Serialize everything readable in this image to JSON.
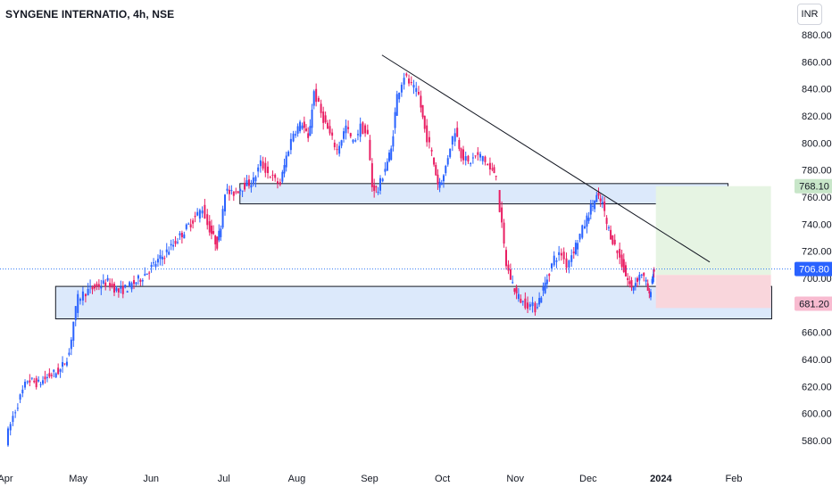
{
  "header": {
    "title": "SYNGENE INTERNATIO, 4h, NSE",
    "currency": "INR"
  },
  "colors": {
    "up": "#2962ff",
    "down": "#e91e63",
    "zone_fill": "#dce9fb",
    "zone_stroke": "#131722",
    "trendline": "#131722",
    "target_fill": "#e6f4e3",
    "stop_fill": "#f9d6dc",
    "price_line": "#3179f5"
  },
  "chart_data": {
    "type": "candlestick",
    "symbol": "SYNGENE INTERNATIO",
    "interval": "4h",
    "exchange": "NSE",
    "currency": "INR",
    "ylim": [
      570,
      890
    ],
    "y_ticks": [
      580,
      600,
      620,
      640,
      660,
      680,
      700,
      720,
      740,
      760,
      780,
      800,
      820,
      840,
      860,
      880
    ],
    "x_ticks": [
      {
        "label": "Apr",
        "month": 3.83
      },
      {
        "label": "May",
        "month": 4.83
      },
      {
        "label": "Jun",
        "month": 5.83
      },
      {
        "label": "Jul",
        "month": 6.83
      },
      {
        "label": "Aug",
        "month": 7.83
      },
      {
        "label": "Sep",
        "month": 8.83
      },
      {
        "label": "Oct",
        "month": 9.83
      },
      {
        "label": "Nov",
        "month": 10.83
      },
      {
        "label": "Dec",
        "month": 11.83
      },
      {
        "label": "2024",
        "month": 12.83
      },
      {
        "label": "Feb",
        "month": 13.83
      }
    ],
    "last_price": 706.8,
    "price_labels": [
      {
        "value": 768.1,
        "text": "768.10",
        "bg": "#c8e6c9",
        "color": "#131722"
      },
      {
        "value": 706.8,
        "text": "706.80",
        "bg": "#2962ff",
        "color": "#ffffff"
      },
      {
        "value": 681.2,
        "text": "681.20",
        "bg": "#f8bbd0",
        "color": "#131722"
      }
    ],
    "path": [
      [
        3.85,
        580
      ],
      [
        3.95,
        598
      ],
      [
        4.05,
        612
      ],
      [
        4.15,
        625
      ],
      [
        4.3,
        622
      ],
      [
        4.45,
        628
      ],
      [
        4.6,
        632
      ],
      [
        4.72,
        645
      ],
      [
        4.78,
        668
      ],
      [
        4.84,
        685
      ],
      [
        4.95,
        690
      ],
      [
        5.1,
        694
      ],
      [
        5.25,
        697
      ],
      [
        5.4,
        690
      ],
      [
        5.55,
        694
      ],
      [
        5.7,
        700
      ],
      [
        5.85,
        708
      ],
      [
        6.0,
        716
      ],
      [
        6.15,
        725
      ],
      [
        6.3,
        735
      ],
      [
        6.45,
        745
      ],
      [
        6.55,
        752
      ],
      [
        6.62,
        740
      ],
      [
        6.7,
        730
      ],
      [
        6.75,
        725
      ],
      [
        6.8,
        740
      ],
      [
        6.86,
        765
      ],
      [
        6.95,
        762
      ],
      [
        7.1,
        768
      ],
      [
        7.25,
        772
      ],
      [
        7.35,
        785
      ],
      [
        7.45,
        778
      ],
      [
        7.55,
        772
      ],
      [
        7.62,
        770
      ],
      [
        7.7,
        790
      ],
      [
        7.8,
        808
      ],
      [
        7.92,
        815
      ],
      [
        8.0,
        802
      ],
      [
        8.08,
        838
      ],
      [
        8.18,
        822
      ],
      [
        8.3,
        806
      ],
      [
        8.4,
        795
      ],
      [
        8.52,
        812
      ],
      [
        8.62,
        800
      ],
      [
        8.72,
        812
      ],
      [
        8.82,
        805
      ],
      [
        8.88,
        768
      ],
      [
        8.96,
        765
      ],
      [
        9.06,
        782
      ],
      [
        9.14,
        795
      ],
      [
        9.22,
        835
      ],
      [
        9.32,
        850
      ],
      [
        9.42,
        842
      ],
      [
        9.52,
        835
      ],
      [
        9.6,
        810
      ],
      [
        9.7,
        792
      ],
      [
        9.78,
        770
      ],
      [
        9.86,
        775
      ],
      [
        9.95,
        798
      ],
      [
        10.02,
        810
      ],
      [
        10.1,
        792
      ],
      [
        10.2,
        785
      ],
      [
        10.3,
        790
      ],
      [
        10.4,
        790
      ],
      [
        10.5,
        780
      ],
      [
        10.58,
        778
      ]
    ],
    "path2": [
      [
        10.6,
        764
      ],
      [
        10.66,
        738
      ],
      [
        10.72,
        710
      ],
      [
        10.78,
        700
      ],
      [
        10.86,
        688
      ],
      [
        10.95,
        682
      ],
      [
        11.05,
        680
      ],
      [
        11.12,
        678
      ],
      [
        11.2,
        688
      ],
      [
        11.28,
        700
      ],
      [
        11.38,
        715
      ],
      [
        11.48,
        718
      ],
      [
        11.55,
        710
      ],
      [
        11.62,
        718
      ],
      [
        11.7,
        728
      ],
      [
        11.8,
        740
      ],
      [
        11.88,
        752
      ],
      [
        11.96,
        760
      ],
      [
        12.04,
        755
      ],
      [
        12.1,
        740
      ],
      [
        12.18,
        728
      ],
      [
        12.28,
        715
      ],
      [
        12.36,
        702
      ],
      [
        12.44,
        692
      ],
      [
        12.52,
        700
      ],
      [
        12.58,
        704
      ],
      [
        12.64,
        696
      ],
      [
        12.68,
        686
      ],
      [
        12.72,
        700
      ],
      [
        12.74,
        707
      ]
    ],
    "zones": [
      {
        "name": "resistance-zone",
        "month_from": 7.05,
        "month_to": 13.75,
        "y_low": 755,
        "y_high": 770
      },
      {
        "name": "support-zone",
        "month_from": 4.52,
        "month_to": 14.35,
        "y_low": 670,
        "y_high": 694
      }
    ],
    "trendline": {
      "from": [
        9.0,
        865
      ],
      "to": [
        13.5,
        712
      ]
    },
    "position": {
      "month_from": 12.76,
      "month_to": 14.34,
      "entry": 702.5,
      "target": 768.1,
      "stop": 681.2,
      "stop_display_low": 678
    }
  }
}
